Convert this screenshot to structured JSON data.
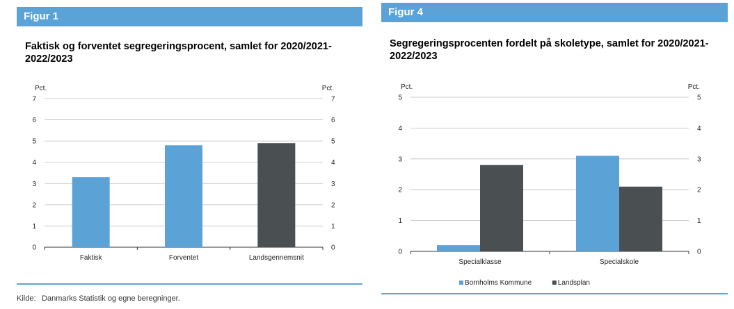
{
  "source": "Kilde:  Danmarks Statistik og egne beregninger.",
  "chart_data": [
    {
      "type": "bar",
      "header": "Figur 1",
      "title": "Faktisk og forventet segregeringsprocent, samlet for 2020/2021- 2022/2023",
      "ylabel_left": "Pct.",
      "ylabel_right": "Pct.",
      "ylim": [
        0,
        7
      ],
      "yticks": [
        "0",
        "1",
        "2",
        "3",
        "4",
        "5",
        "6",
        "7"
      ],
      "grid": true,
      "categories": [
        "Faktisk",
        "Forventet",
        "Landsgennemsnit"
      ],
      "values": [
        3.3,
        4.8,
        4.9
      ],
      "colors": [
        "#5ba3d6",
        "#5ba3d6",
        "#4a4f52"
      ]
    },
    {
      "type": "bar",
      "header": "Figur 4",
      "title": "Segregeringsprocenten fordelt på skoletype, samlet for 2020/2021-2022/2023",
      "ylabel_left": "Pct.",
      "ylabel_right": "Pct.",
      "ylim": [
        0,
        5
      ],
      "yticks": [
        "0",
        "1",
        "2",
        "3",
        "4",
        "5"
      ],
      "grid": true,
      "legend_position": "bottom",
      "categories": [
        "Specialklasse",
        "Specialskole"
      ],
      "series": [
        {
          "name": "Bornholms Kommune",
          "values": [
            0.2,
            3.1
          ],
          "color": "#5ba3d6"
        },
        {
          "name": "Landsplan",
          "values": [
            2.8,
            2.1
          ],
          "color": "#4a4f52"
        }
      ]
    }
  ]
}
